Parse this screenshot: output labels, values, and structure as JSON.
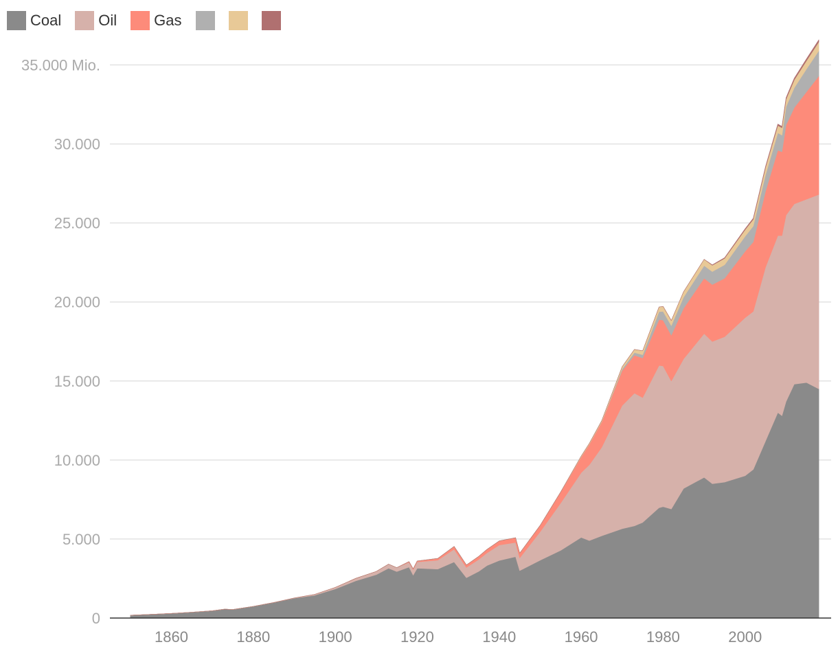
{
  "chart_data": {
    "type": "area",
    "stacked": true,
    "title": "",
    "xlabel": "",
    "ylabel": "",
    "xlim": [
      1845,
      2021
    ],
    "ylim": [
      0,
      36500
    ],
    "x_ticks": [
      1860,
      1880,
      1900,
      1920,
      1940,
      1960,
      1980,
      2000
    ],
    "x_tick_labels": [
      "1860",
      "1880",
      "1900",
      "1920",
      "1940",
      "1960",
      "1980",
      "2000"
    ],
    "y_ticks": [
      0,
      5000,
      10000,
      15000,
      20000,
      25000,
      30000,
      35000
    ],
    "y_tick_labels": [
      "0",
      "5.000",
      "10.000",
      "15.000",
      "20.000",
      "25.000",
      "30.000",
      "35.000 Mio."
    ],
    "grid": true,
    "legend_position": "top-left",
    "x": [
      1850,
      1855,
      1860,
      1865,
      1870,
      1873,
      1875,
      1880,
      1885,
      1890,
      1895,
      1900,
      1905,
      1910,
      1913,
      1915,
      1918,
      1919,
      1920,
      1925,
      1929,
      1932,
      1935,
      1937,
      1940,
      1944,
      1945,
      1950,
      1955,
      1960,
      1962,
      1965,
      1970,
      1973,
      1975,
      1979,
      1980,
      1982,
      1985,
      1990,
      1992,
      1995,
      2000,
      2002,
      2005,
      2008,
      2009,
      2010,
      2012,
      2015,
      2018
    ],
    "series": [
      {
        "name": "Coal",
        "color": "#8a8a8a",
        "values": [
          180,
          230,
          290,
          370,
          460,
          560,
          540,
          740,
          980,
          1250,
          1440,
          1840,
          2350,
          2740,
          3150,
          2940,
          3220,
          2710,
          3150,
          3100,
          3550,
          2550,
          2950,
          3320,
          3640,
          3880,
          3000,
          3660,
          4280,
          5100,
          4900,
          5200,
          5650,
          5830,
          6050,
          6980,
          7050,
          6900,
          8200,
          8900,
          8500,
          8600,
          9000,
          9400,
          11200,
          13000,
          12800,
          13700,
          14800,
          14900,
          14500
        ]
      },
      {
        "name": "Oil",
        "color": "#d6b1aa",
        "values": [
          0,
          0,
          0,
          0,
          0,
          0,
          0,
          0,
          0,
          20,
          60,
          100,
          160,
          210,
          260,
          250,
          310,
          350,
          400,
          560,
          800,
          650,
          750,
          800,
          980,
          900,
          800,
          1800,
          3000,
          4100,
          4800,
          5600,
          7800,
          8400,
          7900,
          9000,
          8900,
          8100,
          8200,
          9100,
          9000,
          9200,
          10000,
          10000,
          11000,
          11200,
          11400,
          11800,
          11400,
          11600,
          12300
        ]
      },
      {
        "name": "Gas",
        "color": "#fd8b7a",
        "values": [
          0,
          0,
          0,
          0,
          0,
          0,
          0,
          0,
          0,
          0,
          0,
          0,
          0,
          0,
          0,
          0,
          40,
          50,
          60,
          110,
          180,
          160,
          200,
          220,
          260,
          300,
          300,
          400,
          700,
          1000,
          1300,
          1600,
          2200,
          2400,
          2500,
          2900,
          2900,
          2900,
          3200,
          3500,
          3600,
          3700,
          4200,
          4400,
          4800,
          5400,
          5300,
          5700,
          6100,
          6800,
          7500
        ]
      },
      {
        "name": "",
        "color": "#b0b0b0",
        "values": [
          0,
          0,
          0,
          0,
          0,
          0,
          0,
          0,
          0,
          0,
          0,
          0,
          0,
          0,
          0,
          0,
          0,
          0,
          0,
          0,
          0,
          0,
          0,
          0,
          0,
          0,
          0,
          0,
          0,
          0,
          0,
          0,
          100,
          170,
          210,
          500,
          550,
          600,
          700,
          800,
          820,
          850,
          950,
          1000,
          1050,
          1100,
          1050,
          1150,
          1250,
          1450,
          1600
        ]
      },
      {
        "name": "",
        "color": "#e8c997",
        "values": [
          0,
          0,
          0,
          0,
          0,
          0,
          0,
          0,
          0,
          0,
          0,
          0,
          0,
          0,
          0,
          0,
          0,
          0,
          0,
          0,
          0,
          0,
          0,
          0,
          0,
          0,
          0,
          0,
          0,
          50,
          60,
          80,
          150,
          200,
          250,
          300,
          320,
          330,
          350,
          400,
          400,
          410,
          420,
          430,
          450,
          470,
          470,
          480,
          500,
          520,
          560
        ]
      },
      {
        "name": "",
        "color": "#b07070",
        "values": [
          0,
          0,
          0,
          0,
          0,
          0,
          0,
          0,
          0,
          0,
          0,
          0,
          0,
          0,
          0,
          0,
          0,
          0,
          0,
          0,
          0,
          0,
          0,
          0,
          0,
          0,
          0,
          0,
          0,
          0,
          0,
          0,
          0,
          0,
          0,
          0,
          0,
          0,
          0,
          0,
          30,
          40,
          60,
          70,
          80,
          90,
          90,
          100,
          110,
          120,
          130
        ]
      }
    ]
  }
}
